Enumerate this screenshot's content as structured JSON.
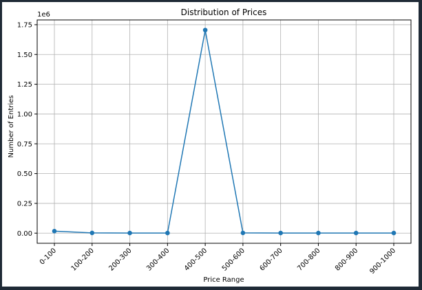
{
  "chart_data": {
    "type": "line",
    "title": "Distribution of Prices",
    "xlabel": "Price Range",
    "ylabel": "Number of Entries",
    "y_scale_label": "1e6",
    "categories": [
      "0-100",
      "100-200",
      "200-300",
      "300-400",
      "400-500",
      "500-600",
      "600-700",
      "700-800",
      "800-900",
      "900-1000"
    ],
    "series": [
      {
        "values": [
          17000,
          2000,
          1000,
          1000,
          1705000,
          2000,
          1000,
          1000,
          1000,
          1000
        ],
        "color": "#1f77b4"
      }
    ],
    "ylim": [
      -85000,
      1790000
    ],
    "yticks": [
      0,
      250000,
      500000,
      750000,
      1000000,
      1250000,
      1500000,
      1750000
    ],
    "ytick_labels": [
      "0.00",
      "0.25",
      "0.50",
      "0.75",
      "1.00",
      "1.25",
      "1.50",
      "1.75"
    ],
    "grid": true,
    "legend": "none"
  }
}
